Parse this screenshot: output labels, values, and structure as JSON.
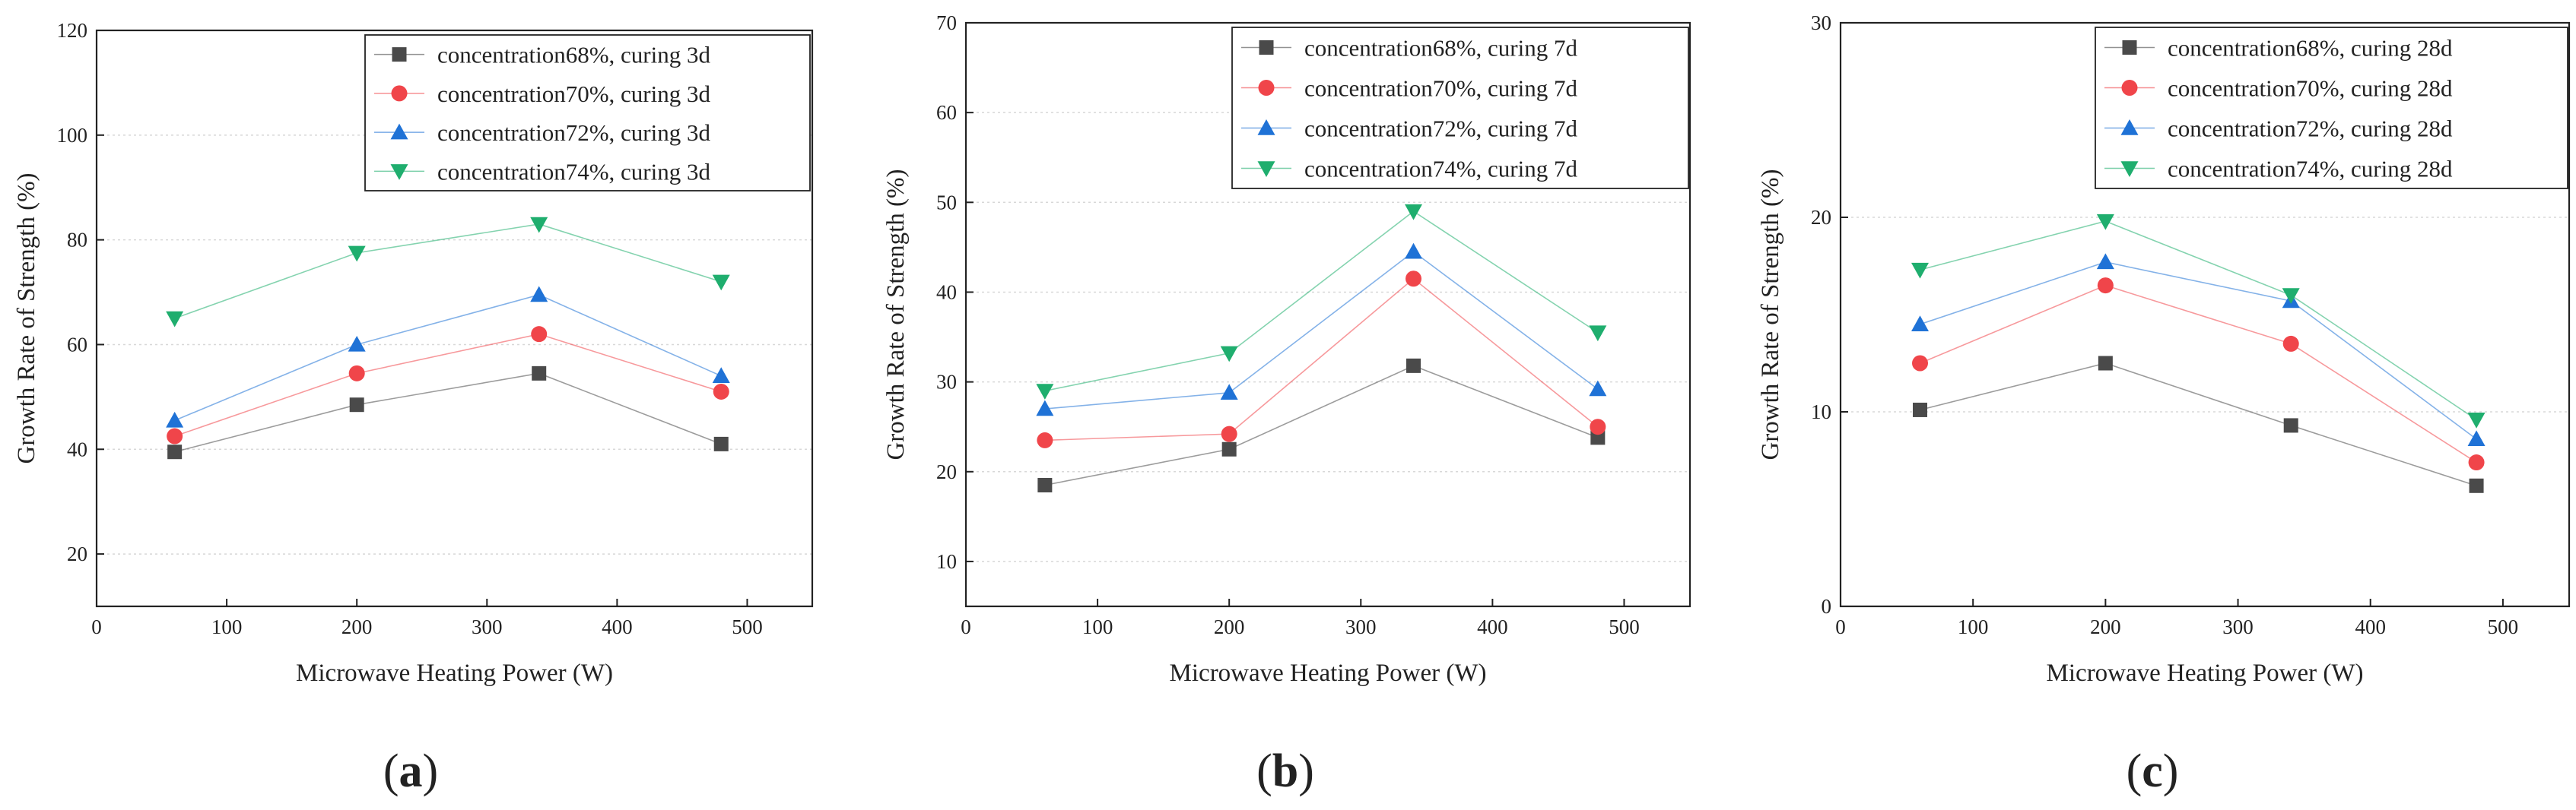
{
  "chart_data": [
    {
      "type": "line",
      "panel_label": "a",
      "xlabel": "Microwave Heating Power (W)",
      "ylabel": "Growth Rate of Strength (%)",
      "xlim": [
        0,
        550
      ],
      "ylim": [
        10,
        120
      ],
      "xticks": [
        0,
        100,
        200,
        300,
        400,
        500
      ],
      "yticks": [
        20,
        40,
        60,
        80,
        100,
        120
      ],
      "grid": true,
      "legend_position": "top-right",
      "x": [
        60,
        200,
        340,
        480
      ],
      "series": [
        {
          "name": "concentration68%, curing 3d",
          "values": [
            39.5,
            48.5,
            54.5,
            41.0
          ],
          "color": "#4a4a4a",
          "marker": "square"
        },
        {
          "name": "concentration70%, curing 3d",
          "values": [
            42.5,
            54.5,
            62.0,
            51.0
          ],
          "color": "#f0454a",
          "marker": "circle"
        },
        {
          "name": "concentration72%, curing 3d",
          "values": [
            45.5,
            60.0,
            69.5,
            54.0
          ],
          "color": "#1f72d6",
          "marker": "triangle-up"
        },
        {
          "name": "concentration74%, curing 3d",
          "values": [
            65.0,
            77.5,
            83.0,
            72.0
          ],
          "color": "#1fae6e",
          "marker": "triangle-down"
        }
      ]
    },
    {
      "type": "line",
      "panel_label": "b",
      "xlabel": "Microwave Heating Power (W)",
      "ylabel": "Growth Rate of Strength (%)",
      "xlim": [
        0,
        550
      ],
      "ylim": [
        5,
        70
      ],
      "xticks": [
        0,
        100,
        200,
        300,
        400,
        500
      ],
      "yticks": [
        10,
        20,
        30,
        40,
        50,
        60,
        70
      ],
      "grid": true,
      "legend_position": "top-right",
      "x": [
        60,
        200,
        340,
        480
      ],
      "series": [
        {
          "name": "concentration68%, curing 7d",
          "values": [
            18.5,
            22.5,
            31.8,
            23.8
          ],
          "color": "#4a4a4a",
          "marker": "square"
        },
        {
          "name": "concentration70%, curing 7d",
          "values": [
            23.5,
            24.2,
            41.5,
            25.0
          ],
          "color": "#f0454a",
          "marker": "circle"
        },
        {
          "name": "concentration72%, curing 7d",
          "values": [
            27.0,
            28.8,
            44.5,
            29.2
          ],
          "color": "#1f72d6",
          "marker": "triangle-up"
        },
        {
          "name": "concentration74%, curing 7d",
          "values": [
            29.0,
            33.2,
            49.0,
            35.5
          ],
          "color": "#1fae6e",
          "marker": "triangle-down"
        }
      ]
    },
    {
      "type": "line",
      "panel_label": "c",
      "xlabel": "Microwave Heating Power (W)",
      "ylabel": "Growth Rate of Strength (%)",
      "xlim": [
        0,
        550
      ],
      "ylim": [
        0,
        30
      ],
      "xticks": [
        0,
        100,
        200,
        300,
        400,
        500
      ],
      "yticks": [
        0,
        10,
        20,
        30
      ],
      "grid": true,
      "legend_position": "top-right",
      "x": [
        60,
        200,
        340,
        480
      ],
      "series": [
        {
          "name": "concentration68%, curing 28d",
          "values": [
            10.1,
            12.5,
            9.3,
            6.2
          ],
          "color": "#4a4a4a",
          "marker": "square"
        },
        {
          "name": "concentration70%, curing 28d",
          "values": [
            12.5,
            16.5,
            13.5,
            7.4
          ],
          "color": "#f0454a",
          "marker": "circle"
        },
        {
          "name": "concentration72%, curing 28d",
          "values": [
            14.5,
            17.7,
            15.7,
            8.6
          ],
          "color": "#1f72d6",
          "marker": "triangle-up"
        },
        {
          "name": "concentration74%, curing 28d",
          "values": [
            17.3,
            19.8,
            16.0,
            9.6
          ],
          "color": "#1fae6e",
          "marker": "triangle-down"
        }
      ]
    }
  ]
}
